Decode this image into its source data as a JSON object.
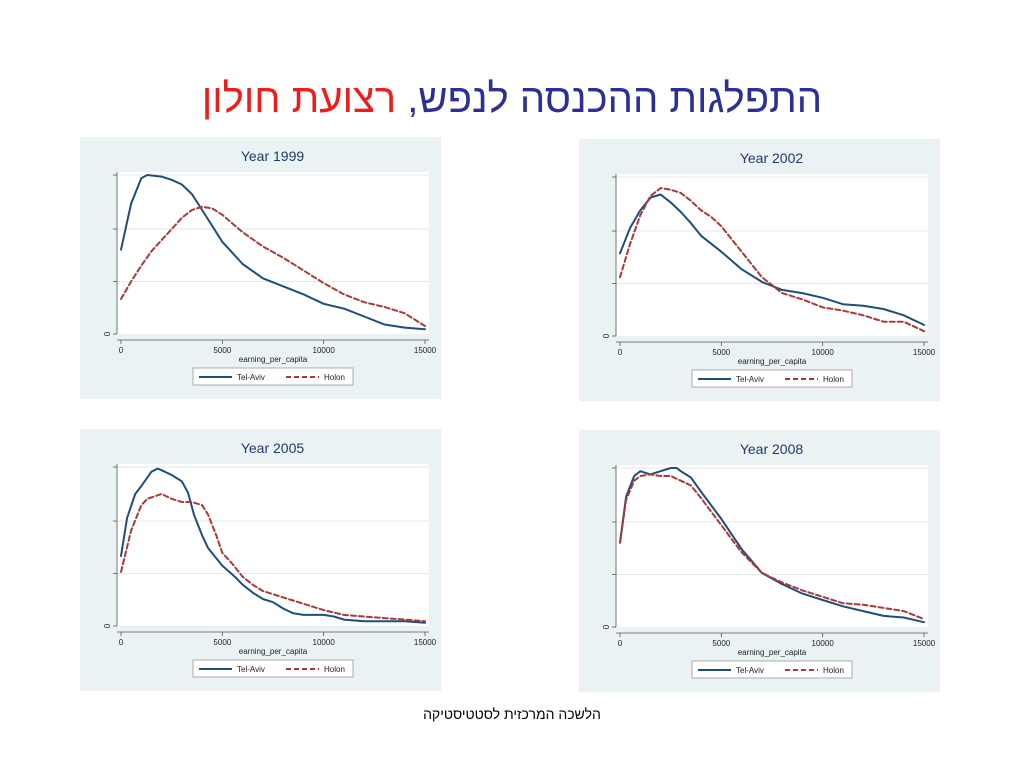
{
  "title": {
    "main": "התפלגות ההכנסה לנפש,",
    "accent": "רצועת חולון"
  },
  "footer": "הלשכה המרכזית לסטטיסטיקה",
  "colors": {
    "series1": "#1f4e79",
    "series2": "#a83a3a",
    "panel_bg": "#eaf2f3",
    "title": "#2b2f96",
    "accent": "#ef1c1c"
  },
  "chart_data": [
    {
      "type": "line",
      "title": "Year 1999",
      "xlabel": "earning_per_capita",
      "ylabel": "",
      "xlim": [
        0,
        15000
      ],
      "ylim": [
        0,
        1
      ],
      "xticks": [
        "0",
        "5000",
        "10000",
        "15000"
      ],
      "yticks": [
        "0"
      ],
      "legend": [
        "Tel-Aviv",
        "Holon"
      ],
      "legend_position": "bottom",
      "grid": true,
      "series": [
        {
          "name": "Tel-Aviv",
          "style": "solid",
          "x": [
            0,
            500,
            1000,
            1300,
            2000,
            2500,
            3000,
            3500,
            4000,
            5000,
            6000,
            7000,
            8000,
            9000,
            10000,
            11000,
            12000,
            13000,
            14000,
            15000
          ],
          "y": [
            0.53,
            0.82,
            0.98,
            1.0,
            0.99,
            0.97,
            0.94,
            0.88,
            0.78,
            0.58,
            0.44,
            0.35,
            0.3,
            0.25,
            0.19,
            0.16,
            0.11,
            0.06,
            0.04,
            0.03
          ]
        },
        {
          "name": "Holon",
          "style": "dashed",
          "x": [
            0,
            500,
            1000,
            1500,
            2000,
            2500,
            3000,
            3500,
            4000,
            4500,
            5000,
            6000,
            7000,
            8000,
            9000,
            10000,
            11000,
            12000,
            13000,
            14000,
            15000
          ],
          "y": [
            0.22,
            0.33,
            0.43,
            0.52,
            0.59,
            0.66,
            0.73,
            0.78,
            0.8,
            0.79,
            0.75,
            0.64,
            0.55,
            0.48,
            0.4,
            0.32,
            0.25,
            0.2,
            0.17,
            0.13,
            0.05
          ]
        }
      ]
    },
    {
      "type": "line",
      "title": "Year 2002",
      "xlabel": "earning_per_capita",
      "ylabel": "",
      "xlim": [
        0,
        15000
      ],
      "ylim": [
        0,
        1
      ],
      "xticks": [
        "0",
        "5000",
        "10000",
        "15000"
      ],
      "yticks": [
        "0"
      ],
      "legend": [
        "Tel-Aviv",
        "Holon"
      ],
      "legend_position": "bottom",
      "grid": true,
      "series": [
        {
          "name": "Tel-Aviv",
          "style": "solid",
          "x": [
            0,
            500,
            1000,
            1500,
            2000,
            2500,
            3000,
            3500,
            4000,
            5000,
            6000,
            7000,
            8000,
            9000,
            10000,
            11000,
            12000,
            13000,
            14000,
            15000
          ],
          "y": [
            0.52,
            0.68,
            0.79,
            0.87,
            0.89,
            0.84,
            0.78,
            0.71,
            0.63,
            0.53,
            0.42,
            0.34,
            0.29,
            0.27,
            0.24,
            0.2,
            0.19,
            0.17,
            0.13,
            0.07
          ]
        },
        {
          "name": "Holon",
          "style": "dashed",
          "x": [
            0,
            500,
            1000,
            1500,
            2000,
            2500,
            3000,
            3500,
            4000,
            4500,
            5000,
            6000,
            7000,
            8000,
            9000,
            10000,
            11000,
            12000,
            13000,
            14000,
            15000
          ],
          "y": [
            0.37,
            0.58,
            0.76,
            0.88,
            0.93,
            0.92,
            0.9,
            0.85,
            0.79,
            0.75,
            0.69,
            0.53,
            0.37,
            0.27,
            0.23,
            0.18,
            0.16,
            0.13,
            0.09,
            0.09,
            0.03
          ]
        }
      ]
    },
    {
      "type": "line",
      "title": "Year 2005",
      "xlabel": "earning_per_capita",
      "ylabel": "",
      "xlim": [
        0,
        15000
      ],
      "ylim": [
        0,
        1
      ],
      "xticks": [
        "0",
        "5000",
        "10000",
        "15000"
      ],
      "yticks": [
        "0"
      ],
      "legend": [
        "Tel-Aviv",
        "Holon"
      ],
      "legend_position": "bottom",
      "grid": true,
      "series": [
        {
          "name": "Tel-Aviv",
          "style": "solid",
          "x": [
            0,
            300,
            700,
            1000,
            1500,
            1800,
            2000,
            2500,
            3000,
            3300,
            3600,
            4000,
            4300,
            5000,
            5700,
            6000,
            6500,
            7000,
            7500,
            8000,
            8500,
            9000,
            10000,
            10500,
            11000,
            12000,
            13000,
            14000,
            15000
          ],
          "y": [
            0.44,
            0.68,
            0.83,
            0.88,
            0.97,
            0.99,
            0.98,
            0.95,
            0.91,
            0.84,
            0.7,
            0.57,
            0.49,
            0.38,
            0.3,
            0.26,
            0.21,
            0.17,
            0.15,
            0.11,
            0.08,
            0.07,
            0.07,
            0.06,
            0.04,
            0.03,
            0.03,
            0.03,
            0.02
          ]
        },
        {
          "name": "Holon",
          "style": "dashed",
          "x": [
            0,
            500,
            1000,
            1300,
            2000,
            2500,
            3000,
            3500,
            4000,
            4300,
            4700,
            5000,
            5500,
            6000,
            6500,
            7000,
            8000,
            9000,
            10000,
            11000,
            12000,
            13000,
            14000,
            15000
          ],
          "y": [
            0.34,
            0.6,
            0.76,
            0.8,
            0.83,
            0.8,
            0.78,
            0.78,
            0.76,
            0.7,
            0.57,
            0.46,
            0.39,
            0.31,
            0.26,
            0.22,
            0.18,
            0.14,
            0.1,
            0.07,
            0.06,
            0.05,
            0.04,
            0.03
          ]
        }
      ]
    },
    {
      "type": "line",
      "title": "Year 2008",
      "xlabel": "earning_per_capita",
      "ylabel": "",
      "xlim": [
        0,
        15000
      ],
      "ylim": [
        0,
        1
      ],
      "xticks": [
        "0",
        "5000",
        "10000",
        "15000"
      ],
      "yticks": [
        "0"
      ],
      "legend": [
        "Tel-Aviv",
        "Holon"
      ],
      "legend_position": "bottom",
      "grid": true,
      "series": [
        {
          "name": "Tel-Aviv",
          "style": "solid",
          "x": [
            0,
            300,
            700,
            1000,
            1500,
            2000,
            2500,
            2800,
            3000,
            3500,
            4000,
            5000,
            6000,
            7000,
            8000,
            9000,
            10000,
            11000,
            12000,
            13000,
            14000,
            15000
          ],
          "y": [
            0.53,
            0.82,
            0.95,
            0.98,
            0.96,
            0.98,
            1.0,
            1.0,
            0.98,
            0.94,
            0.85,
            0.68,
            0.49,
            0.34,
            0.27,
            0.21,
            0.17,
            0.13,
            0.1,
            0.07,
            0.06,
            0.03
          ]
        },
        {
          "name": "Holon",
          "style": "dashed",
          "x": [
            0,
            300,
            700,
            1000,
            1500,
            2000,
            2500,
            3000,
            3500,
            4000,
            5000,
            6000,
            7000,
            8000,
            9000,
            10000,
            11000,
            12000,
            13000,
            14000,
            15000
          ],
          "y": [
            0.53,
            0.8,
            0.92,
            0.95,
            0.96,
            0.95,
            0.95,
            0.92,
            0.89,
            0.81,
            0.64,
            0.47,
            0.34,
            0.28,
            0.23,
            0.19,
            0.15,
            0.14,
            0.12,
            0.1,
            0.05
          ]
        }
      ]
    }
  ]
}
